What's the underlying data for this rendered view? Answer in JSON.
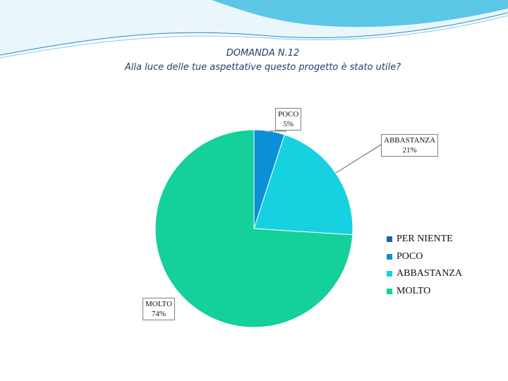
{
  "header": {
    "title": "DOMANDA N.12",
    "subtitle": "Alla luce delle tue aspettative questo progetto è stato utile?"
  },
  "chart_data": {
    "type": "pie",
    "categories": [
      "PER NIENTE",
      "POCO",
      "ABBASTANZA",
      "MOLTO"
    ],
    "values": [
      0,
      5,
      21,
      74
    ],
    "labels": [
      {
        "name": "POCO",
        "value": "5%"
      },
      {
        "name": "ABBASTANZA",
        "value": "21%"
      },
      {
        "name": "MOLTO",
        "value": "74%"
      }
    ],
    "colors": [
      "#1f5fa8",
      "#0b8fd6",
      "#16d2e0",
      "#14d09a"
    ],
    "legend": "right"
  }
}
